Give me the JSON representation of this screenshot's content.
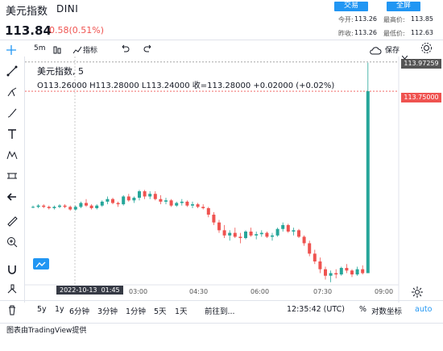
{
  "header": {
    "title": "美元指数",
    "symbol": "DINI",
    "btn_trade": "交易",
    "btn_fullscreen": "全屏",
    "today_open_label": "今开:",
    "today_open": "113.26",
    "high_label": "最高价:",
    "high": "113.85",
    "prev_close_label": "昨收:",
    "prev_close": "113.26",
    "low_label": "最低价:",
    "low": "112.63",
    "last_price": "113.84",
    "change": "0.58(0.51%)"
  },
  "toolbar": {
    "interval": "5m",
    "indicators": "指标",
    "save": "保存"
  },
  "legend": {
    "name": "美元指数, 5",
    "ohlc": "O113.26000  H113.28000  L113.24000  收=113.28000  +0.02000 (+0.02%)"
  },
  "price_axis": {
    "tag_top": "113.97259",
    "tag_last": "113.75000"
  },
  "time_axis": {
    "date_tag": "2022-10-13",
    "time_tag": "01:45",
    "ticks": [
      "03:00",
      "04:30",
      "06:00",
      "07:30",
      "09:00"
    ]
  },
  "bottom": {
    "ranges": [
      "5y",
      "1y",
      "6分钟",
      "3分钟",
      "1分钟",
      "5天",
      "1天"
    ],
    "goto": "前往到...",
    "clock": "12:35:42 (UTC)",
    "percent": "%",
    "log": "对数坐标",
    "auto": "auto"
  },
  "footer": {
    "text": "图表由TradingView提供"
  },
  "colors": {
    "up": "#26a69a",
    "down": "#ef5350",
    "accent": "#2196f3"
  },
  "chart_data": {
    "type": "candlestick",
    "series": [
      {
        "name": "美元指数",
        "values": [
          [
            112.86,
            112.87,
            112.85,
            112.86
          ],
          [
            112.86,
            112.88,
            112.85,
            112.87
          ],
          [
            112.87,
            112.88,
            112.85,
            112.86
          ],
          [
            112.86,
            112.87,
            112.84,
            112.85
          ],
          [
            112.85,
            112.87,
            112.84,
            112.86
          ],
          [
            112.86,
            112.88,
            112.85,
            112.87
          ],
          [
            112.87,
            112.88,
            112.85,
            112.86
          ],
          [
            112.86,
            112.87,
            112.83,
            112.84
          ],
          [
            112.84,
            112.87,
            112.83,
            112.86
          ],
          [
            112.86,
            112.9,
            112.85,
            112.89
          ],
          [
            112.89,
            112.92,
            112.86,
            112.87
          ],
          [
            112.87,
            112.88,
            112.84,
            112.85
          ],
          [
            112.85,
            112.88,
            112.84,
            112.87
          ],
          [
            112.87,
            112.91,
            112.86,
            112.9
          ],
          [
            112.9,
            112.94,
            112.88,
            112.92
          ],
          [
            112.92,
            112.93,
            112.88,
            112.89
          ],
          [
            112.89,
            112.9,
            112.86,
            112.88
          ],
          [
            112.88,
            112.95,
            112.87,
            112.94
          ],
          [
            112.94,
            112.96,
            112.9,
            112.91
          ],
          [
            112.91,
            112.94,
            112.89,
            112.93
          ],
          [
            112.93,
            112.99,
            112.91,
            112.98
          ],
          [
            112.98,
            112.99,
            112.92,
            112.94
          ],
          [
            112.94,
            112.98,
            112.92,
            112.96
          ],
          [
            112.96,
            112.98,
            112.91,
            112.92
          ],
          [
            112.92,
            112.95,
            112.88,
            112.9
          ],
          [
            112.9,
            112.93,
            112.88,
            112.91
          ],
          [
            112.91,
            112.92,
            112.86,
            112.87
          ],
          [
            112.87,
            112.9,
            112.86,
            112.89
          ],
          [
            112.89,
            112.92,
            112.87,
            112.9
          ],
          [
            112.9,
            112.91,
            112.86,
            112.87
          ],
          [
            112.87,
            112.9,
            112.85,
            112.88
          ],
          [
            112.88,
            112.89,
            112.85,
            112.86
          ],
          [
            112.86,
            112.88,
            112.84,
            112.85
          ],
          [
            112.85,
            112.86,
            112.78,
            112.8
          ],
          [
            112.8,
            112.82,
            112.72,
            112.74
          ],
          [
            112.74,
            112.76,
            112.66,
            112.68
          ],
          [
            112.68,
            112.72,
            112.62,
            112.64
          ],
          [
            112.64,
            112.68,
            112.6,
            112.66
          ],
          [
            112.66,
            112.7,
            112.62,
            112.63
          ],
          [
            112.63,
            112.66,
            112.58,
            112.62
          ],
          [
            112.62,
            112.68,
            112.61,
            112.67
          ],
          [
            112.67,
            112.7,
            112.63,
            112.64
          ],
          [
            112.64,
            112.67,
            112.61,
            112.65
          ],
          [
            112.65,
            112.68,
            112.63,
            112.66
          ],
          [
            112.66,
            112.67,
            112.62,
            112.63
          ],
          [
            112.63,
            112.66,
            112.6,
            112.64
          ],
          [
            112.64,
            112.7,
            112.63,
            112.69
          ],
          [
            112.69,
            112.74,
            112.67,
            112.72
          ],
          [
            112.72,
            112.73,
            112.66,
            112.67
          ],
          [
            112.67,
            112.7,
            112.64,
            112.68
          ],
          [
            112.68,
            112.69,
            112.62,
            112.63
          ],
          [
            112.63,
            112.64,
            112.56,
            112.58
          ],
          [
            112.58,
            112.6,
            112.48,
            112.5
          ],
          [
            112.5,
            112.53,
            112.42,
            112.44
          ],
          [
            112.44,
            112.47,
            112.35,
            112.38
          ],
          [
            112.38,
            112.4,
            112.3,
            112.33
          ],
          [
            112.33,
            112.37,
            112.28,
            112.35
          ],
          [
            112.35,
            112.38,
            112.31,
            112.34
          ],
          [
            112.34,
            112.4,
            112.33,
            112.39
          ],
          [
            112.39,
            112.42,
            112.35,
            112.37
          ],
          [
            112.37,
            112.38,
            112.32,
            112.34
          ],
          [
            112.34,
            112.4,
            112.33,
            112.38
          ],
          [
            112.38,
            112.41,
            112.34,
            112.35
          ],
          [
            112.35,
            113.97,
            112.35,
            113.75
          ]
        ]
      }
    ],
    "x_ticks": [
      "03:00",
      "04:30",
      "06:00",
      "07:30",
      "09:00"
    ],
    "ylim": [
      112.26,
      113.98
    ]
  }
}
